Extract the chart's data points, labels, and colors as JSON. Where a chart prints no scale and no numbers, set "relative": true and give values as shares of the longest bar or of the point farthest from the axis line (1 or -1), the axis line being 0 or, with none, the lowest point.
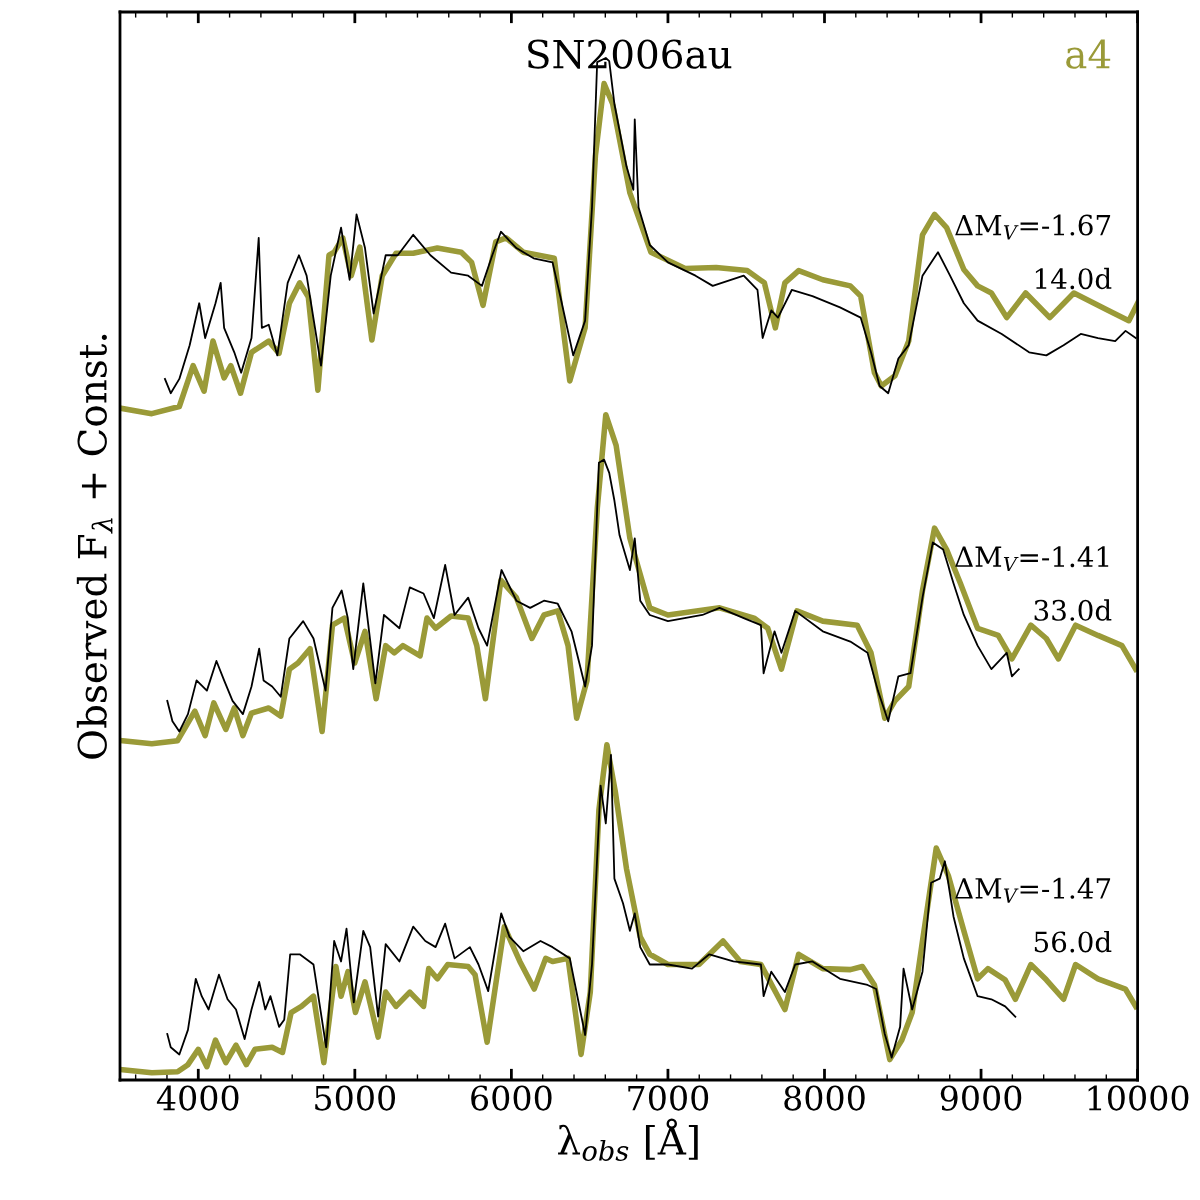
{
  "chart_data": {
    "type": "line",
    "title": "SN2006au",
    "xlabel": "λ$_{obs}$ [Å]",
    "ylabel": "Observed F$_{λ}$ + Const.",
    "relative": true,
    "xlim": [
      3500,
      10000
    ],
    "xticks": [
      4000,
      5000,
      6000,
      7000,
      8000,
      9000,
      10000
    ],
    "grid": false,
    "series": [
      {
        "name": "a4",
        "color": "#9a9a38",
        "x": [
          3516,
          3703,
          3879,
          3967,
          4037,
          4094,
          4165,
          4208,
          4270,
          4340,
          4450,
          4516,
          4582,
          4648,
          4703,
          4764,
          4835,
          4868,
          4923,
          4977,
          5032,
          5109,
          5175,
          5263,
          5373,
          5527,
          5680,
          5746,
          5819,
          5900,
          5966,
          6076,
          6274,
          6373,
          6471,
          6537,
          6592,
          6647,
          6757,
          6891,
          7110,
          7308,
          7506,
          7616,
          7686,
          7747,
          7835,
          7989,
          8165,
          8231,
          8319,
          8363,
          8450,
          8538,
          8626,
          8703,
          8780,
          8890,
          8978,
          9066,
          9164,
          9285,
          9439,
          9593,
          9813,
          9944,
          10000
        ],
        "values": [
          0.657,
          0.652,
          0.659,
          0.699,
          0.674,
          0.723,
          0.687,
          0.699,
          0.672,
          0.712,
          0.723,
          0.711,
          0.76,
          0.78,
          0.766,
          0.675,
          0.807,
          0.81,
          0.824,
          0.787,
          0.815,
          0.724,
          0.787,
          0.809,
          0.809,
          0.814,
          0.81,
          0.8,
          0.758,
          0.82,
          0.824,
          0.81,
          0.804,
          0.684,
          0.736,
          0.905,
          0.975,
          0.955,
          0.868,
          0.81,
          0.794,
          0.795,
          0.792,
          0.78,
          0.736,
          0.78,
          0.792,
          0.783,
          0.777,
          0.767,
          0.692,
          0.679,
          0.689,
          0.723,
          0.827,
          0.847,
          0.834,
          0.793,
          0.777,
          0.77,
          0.746,
          0.77,
          0.746,
          0.77,
          0.753,
          0.743,
          0.76
        ]
      },
      {
        "color": "#9a9a38",
        "x": [
          3516,
          3703,
          3868,
          3978,
          4044,
          4099,
          4176,
          4230,
          4285,
          4340,
          4450,
          4527,
          4582,
          4637,
          4714,
          4791,
          4857,
          4933,
          4999,
          5065,
          5136,
          5197,
          5252,
          5307,
          5417,
          5461,
          5516,
          5615,
          5724,
          5779,
          5834,
          5933,
          6032,
          6131,
          6208,
          6296,
          6362,
          6417,
          6483,
          6549,
          6603,
          6669,
          6757,
          6884,
          7000,
          7330,
          7550,
          7638,
          7725,
          7824,
          7989,
          8209,
          8297,
          8385,
          8450,
          8538,
          8626,
          8703,
          8780,
          8868,
          8978,
          9110,
          9197,
          9318,
          9417,
          9494,
          9604,
          9747,
          9900,
          9988
        ],
        "values": [
          0.332,
          0.329,
          0.332,
          0.361,
          0.337,
          0.369,
          0.343,
          0.364,
          0.337,
          0.359,
          0.364,
          0.356,
          0.402,
          0.408,
          0.422,
          0.341,
          0.445,
          0.452,
          0.408,
          0.439,
          0.373,
          0.425,
          0.418,
          0.425,
          0.415,
          0.452,
          0.442,
          0.454,
          0.452,
          0.425,
          0.373,
          0.489,
          0.472,
          0.432,
          0.455,
          0.459,
          0.425,
          0.354,
          0.391,
          0.56,
          0.651,
          0.621,
          0.53,
          0.462,
          0.455,
          0.462,
          0.452,
          0.442,
          0.402,
          0.459,
          0.449,
          0.445,
          0.418,
          0.354,
          0.371,
          0.385,
          0.479,
          0.54,
          0.519,
          0.486,
          0.442,
          0.435,
          0.412,
          0.445,
          0.432,
          0.412,
          0.445,
          0.435,
          0.425,
          0.402
        ]
      },
      {
        "color": "#9a9a38",
        "x": [
          3516,
          3703,
          3868,
          3934,
          4000,
          4055,
          4110,
          4176,
          4241,
          4307,
          4362,
          4472,
          4538,
          4593,
          4659,
          4736,
          4802,
          4879,
          4912,
          4956,
          5004,
          5065,
          5149,
          5197,
          5263,
          5351,
          5439,
          5472,
          5527,
          5593,
          5724,
          5768,
          5845,
          5955,
          6054,
          6146,
          6219,
          6263,
          6362,
          6445,
          6504,
          6559,
          6610,
          6665,
          6735,
          6823,
          6884,
          7000,
          7198,
          7352,
          7462,
          7594,
          7747,
          7835,
          7989,
          8165,
          8242,
          8319,
          8417,
          8494,
          8560,
          8626,
          8714,
          8791,
          8890,
          8978,
          9044,
          9154,
          9219,
          9318,
          9417,
          9527,
          9604,
          9747,
          9922,
          9988
        ],
        "values": [
          0.01,
          0.007,
          0.008,
          0.015,
          0.03,
          0.013,
          0.039,
          0.017,
          0.034,
          0.015,
          0.03,
          0.032,
          0.027,
          0.066,
          0.072,
          0.082,
          0.017,
          0.111,
          0.082,
          0.106,
          0.066,
          0.096,
          0.042,
          0.086,
          0.072,
          0.086,
          0.072,
          0.109,
          0.099,
          0.113,
          0.111,
          0.103,
          0.037,
          0.15,
          0.116,
          0.089,
          0.119,
          0.116,
          0.119,
          0.025,
          0.086,
          0.264,
          0.328,
          0.281,
          0.207,
          0.14,
          0.123,
          0.113,
          0.113,
          0.136,
          0.116,
          0.113,
          0.069,
          0.123,
          0.109,
          0.108,
          0.111,
          0.093,
          0.02,
          0.039,
          0.066,
          0.136,
          0.227,
          0.2,
          0.146,
          0.099,
          0.109,
          0.098,
          0.079,
          0.113,
          0.098,
          0.079,
          0.113,
          0.099,
          0.089,
          0.072
        ]
      },
      {
        "color": "#000000",
        "x": [
          3787,
          3824,
          3879,
          3945,
          4006,
          4044,
          4110,
          4143,
          4165,
          4230,
          4274,
          4340,
          4386,
          4406,
          4450,
          4505,
          4571,
          4643,
          4692,
          4784,
          4846,
          4912,
          4967,
          5011,
          5065,
          5120,
          5197,
          5274,
          5373,
          5483,
          5615,
          5724,
          5812,
          5878,
          5933,
          6032,
          6142,
          6263,
          6318,
          6395,
          6471,
          6515,
          6548,
          6603,
          6625,
          6658,
          6735,
          6779,
          6788,
          6812,
          6884,
          7000,
          7176,
          7286,
          7484,
          7572,
          7605,
          7660,
          7703,
          7791,
          7923,
          8099,
          8231,
          8297,
          8352,
          8407,
          8472,
          8538,
          8626,
          8725,
          8802,
          8890,
          8978,
          9132,
          9307,
          9417,
          9527,
          9637,
          9747,
          9857,
          9923,
          9988
        ],
        "values": [
          0.686,
          0.672,
          0.686,
          0.719,
          0.76,
          0.726,
          0.76,
          0.78,
          0.736,
          0.712,
          0.692,
          0.726,
          0.824,
          0.736,
          0.739,
          0.709,
          0.78,
          0.807,
          0.787,
          0.699,
          0.787,
          0.834,
          0.783,
          0.847,
          0.814,
          0.75,
          0.807,
          0.807,
          0.827,
          0.807,
          0.79,
          0.787,
          0.777,
          0.807,
          0.83,
          0.814,
          0.804,
          0.8,
          0.763,
          0.709,
          0.743,
          0.854,
          0.996,
          1.0,
          0.997,
          0.955,
          0.894,
          0.871,
          0.94,
          0.854,
          0.817,
          0.8,
          0.787,
          0.777,
          0.787,
          0.773,
          0.726,
          0.753,
          0.746,
          0.773,
          0.767,
          0.756,
          0.746,
          0.712,
          0.679,
          0.672,
          0.706,
          0.719,
          0.787,
          0.81,
          0.787,
          0.76,
          0.743,
          0.73,
          0.712,
          0.709,
          0.719,
          0.73,
          0.726,
          0.723,
          0.733,
          0.726
        ]
      },
      {
        "color": "#000000",
        "x": [
          3802,
          3835,
          3879,
          3934,
          3989,
          4055,
          4116,
          4165,
          4219,
          4285,
          4340,
          4389,
          4417,
          4472,
          4527,
          4582,
          4670,
          4736,
          4813,
          4857,
          4916,
          4955,
          4990,
          5054,
          5131,
          5186,
          5285,
          5351,
          5439,
          5505,
          5577,
          5637,
          5724,
          5790,
          5845,
          5937,
          6032,
          6120,
          6208,
          6296,
          6384,
          6471,
          6515,
          6559,
          6592,
          6625,
          6658,
          6691,
          6757,
          6788,
          6823,
          6884,
          7000,
          7220,
          7330,
          7484,
          7594,
          7611,
          7681,
          7725,
          7813,
          7989,
          8165,
          8275,
          8341,
          8407,
          8472,
          8549,
          8626,
          8692,
          8758,
          8824,
          8890,
          8978,
          9066,
          9164,
          9197,
          9241
        ],
        "values": [
          0.371,
          0.351,
          0.341,
          0.358,
          0.391,
          0.381,
          0.41,
          0.391,
          0.371,
          0.358,
          0.385,
          0.422,
          0.391,
          0.385,
          0.375,
          0.432,
          0.449,
          0.432,
          0.381,
          0.462,
          0.479,
          0.452,
          0.402,
          0.486,
          0.388,
          0.455,
          0.442,
          0.482,
          0.476,
          0.452,
          0.504,
          0.455,
          0.472,
          0.442,
          0.425,
          0.499,
          0.469,
          0.462,
          0.469,
          0.466,
          0.439,
          0.385,
          0.425,
          0.604,
          0.607,
          0.594,
          0.567,
          0.533,
          0.499,
          0.53,
          0.469,
          0.455,
          0.449,
          0.455,
          0.462,
          0.452,
          0.445,
          0.398,
          0.439,
          0.418,
          0.459,
          0.439,
          0.429,
          0.418,
          0.381,
          0.351,
          0.395,
          0.398,
          0.472,
          0.526,
          0.519,
          0.486,
          0.455,
          0.425,
          0.402,
          0.418,
          0.395,
          0.402
        ]
      },
      {
        "color": "#000000",
        "x": [
          3802,
          3824,
          3879,
          3934,
          3984,
          4022,
          4066,
          4132,
          4187,
          4241,
          4296,
          4340,
          4389,
          4428,
          4461,
          4516,
          4549,
          4587,
          4648,
          4736,
          4817,
          4868,
          4912,
          4947,
          4993,
          5054,
          5098,
          5149,
          5197,
          5285,
          5373,
          5450,
          5516,
          5577,
          5637,
          5735,
          5790,
          5852,
          5935,
          5988,
          6076,
          6186,
          6263,
          6373,
          6471,
          6515,
          6570,
          6603,
          6636,
          6658,
          6713,
          6757,
          6788,
          6823,
          6884,
          7000,
          7154,
          7264,
          7418,
          7594,
          7611,
          7660,
          7747,
          7813,
          7923,
          8099,
          8275,
          8330,
          8385,
          8429,
          8483,
          8505,
          8560,
          8626,
          8681,
          8736,
          8769,
          8824,
          8890,
          8978,
          9066,
          9154,
          9219
        ],
        "values": [
          0.045,
          0.032,
          0.025,
          0.049,
          0.099,
          0.082,
          0.069,
          0.103,
          0.079,
          0.069,
          0.04,
          0.069,
          0.096,
          0.069,
          0.082,
          0.052,
          0.059,
          0.123,
          0.123,
          0.113,
          0.032,
          0.136,
          0.116,
          0.148,
          0.076,
          0.146,
          0.13,
          0.062,
          0.133,
          0.116,
          0.15,
          0.136,
          0.13,
          0.153,
          0.119,
          0.13,
          0.113,
          0.087,
          0.163,
          0.14,
          0.126,
          0.136,
          0.13,
          0.119,
          0.044,
          0.113,
          0.288,
          0.251,
          0.318,
          0.197,
          0.173,
          0.146,
          0.163,
          0.13,
          0.113,
          0.113,
          0.109,
          0.123,
          0.116,
          0.113,
          0.082,
          0.106,
          0.086,
          0.113,
          0.116,
          0.099,
          0.093,
          0.089,
          0.045,
          0.022,
          0.052,
          0.109,
          0.069,
          0.106,
          0.193,
          0.197,
          0.214,
          0.16,
          0.119,
          0.082,
          0.079,
          0.072,
          0.062
        ]
      }
    ],
    "annotations": [
      "ΔM$_{V}$=-1.67",
      "14.0d",
      "ΔM$_{V}$=-1.41",
      "33.0d",
      "ΔM$_{V}$=-1.47",
      "56.0d"
    ]
  }
}
